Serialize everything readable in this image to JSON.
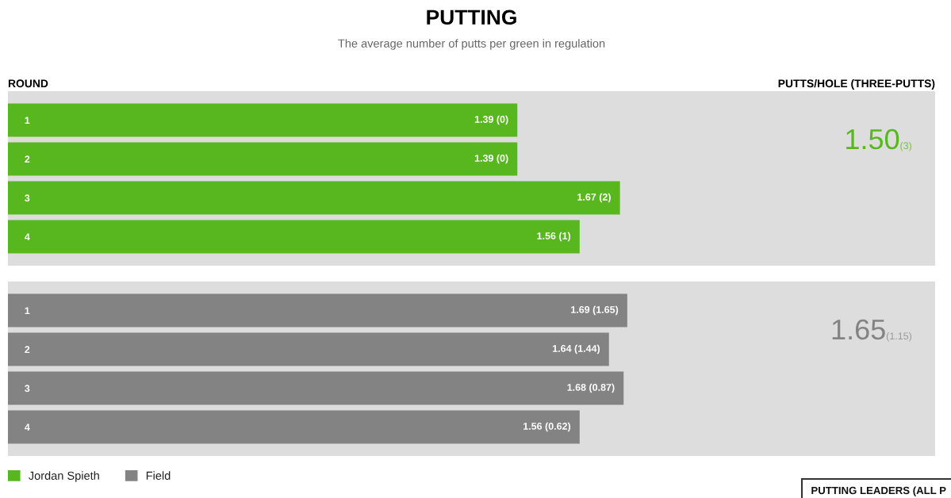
{
  "chart_data": [
    {
      "type": "bar",
      "title": "PUTTING",
      "subtitle": "The average number of putts per green in regulation",
      "ylabel": "ROUND",
      "xlabel": "PUTTS/HOLE (THREE-PUTTS)",
      "orientation": "horizontal",
      "categories": [
        "1",
        "2",
        "3",
        "4"
      ],
      "series": [
        {
          "name": "Jordan Spieth",
          "color": "#58b71e",
          "values": [
            1.39,
            1.39,
            1.67,
            1.56
          ],
          "value_labels": [
            "1.39 (0)",
            "1.39 (0)",
            "1.67 (2)",
            "1.56 (1)"
          ]
        }
      ],
      "xlim": [
        0,
        2.53
      ],
      "tick_labels": "y",
      "annotations": [
        "1.50",
        "(3)"
      ]
    },
    {
      "type": "bar",
      "orientation": "horizontal",
      "categories": [
        "1",
        "2",
        "3",
        "4"
      ],
      "series": [
        {
          "name": "Field",
          "color": "#838383",
          "values": [
            1.69,
            1.64,
            1.68,
            1.56
          ],
          "value_labels": [
            "1.69 (1.65)",
            "1.64 (1.44)",
            "1.68 (0.87)",
            "1.56 (0.62)"
          ]
        }
      ],
      "xlim": [
        0,
        2.53
      ],
      "tick_labels": "y",
      "legend": "bottom left",
      "annotations": [
        "1.65",
        "(1.15)",
        "PUTTING LEADERS (ALL P"
      ]
    }
  ]
}
